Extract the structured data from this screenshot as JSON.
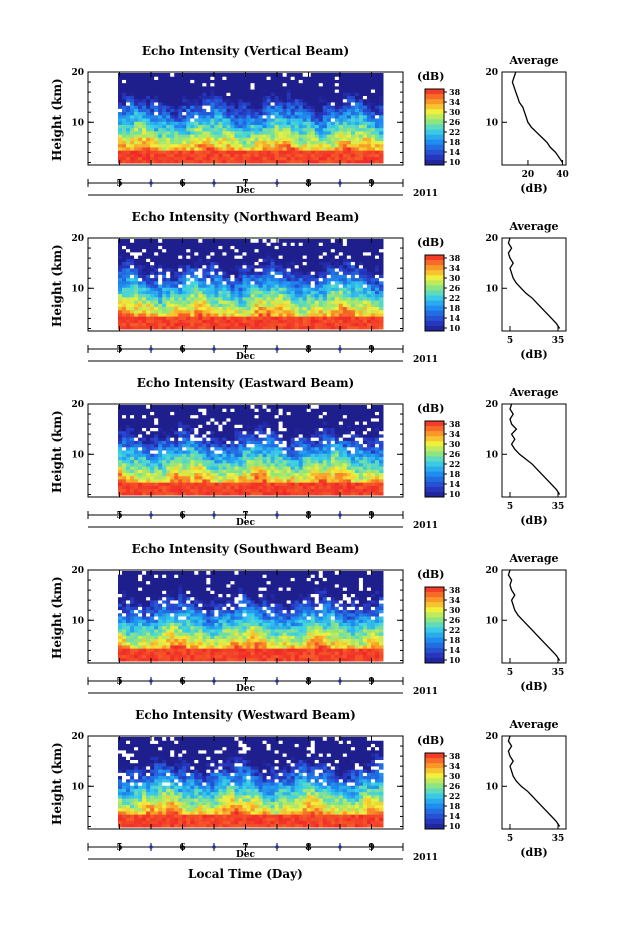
{
  "figure": {
    "xlabel": "Local Time (Day)",
    "month_label": "Dec",
    "year_label": "2011",
    "ylabel": "Height (km)",
    "avg_title": "Average",
    "avg_xlabel": "(dB)",
    "colorbar_unit": "(dB)"
  },
  "chart_data": [
    {
      "type": "heatmap",
      "title": "Echo Intensity (Vertical Beam)",
      "xlabel": "Local Time (Day)",
      "ylabel": "Height (km)",
      "x_ticks": [
        "5",
        "6",
        "7",
        "8",
        "9"
      ],
      "y_ticks": [
        "10",
        "20"
      ],
      "ylim": [
        2,
        20
      ],
      "x_range_days": [
        4.5,
        9.5
      ],
      "colorbar": {
        "label": "(dB)",
        "ticks": [
          "38",
          "34",
          "30",
          "26",
          "22",
          "18",
          "14",
          "10"
        ],
        "range": [
          10,
          38
        ]
      },
      "average_profile": {
        "title": "Average",
        "xlabel": "(dB)",
        "x_ticks": [
          "20",
          "40"
        ],
        "xlim": [
          5,
          42
        ],
        "height": [
          2,
          3,
          4,
          5,
          6,
          7,
          8,
          9,
          10,
          11,
          12,
          13,
          14,
          15,
          16,
          17,
          18,
          19,
          20
        ],
        "value": [
          40,
          38,
          36,
          33,
          31,
          28,
          25,
          22,
          20,
          19,
          18,
          17,
          15,
          14,
          13,
          12,
          11,
          12,
          13
        ]
      }
    },
    {
      "type": "heatmap",
      "title": "Echo Intensity (Northward Beam)",
      "xlabel": "Local Time (Day)",
      "ylabel": "Height (km)",
      "x_ticks": [
        "5",
        "6",
        "7",
        "8",
        "9"
      ],
      "y_ticks": [
        "10",
        "20"
      ],
      "ylim": [
        2,
        20
      ],
      "colorbar": {
        "label": "(dB)",
        "ticks": [
          "38",
          "34",
          "30",
          "26",
          "22",
          "18",
          "14",
          "10"
        ],
        "range": [
          10,
          38
        ]
      },
      "average_profile": {
        "title": "Average",
        "xlabel": "(dB)",
        "x_ticks": [
          "5",
          "35"
        ],
        "xlim": [
          0,
          40
        ],
        "height": [
          2,
          3,
          4,
          5,
          6,
          7,
          8,
          9,
          10,
          11,
          12,
          13,
          14,
          15,
          16,
          17,
          18,
          19,
          20
        ],
        "value": [
          36,
          34,
          31,
          28,
          25,
          22,
          19,
          15,
          12,
          9,
          7,
          6,
          5,
          7,
          5,
          4,
          6,
          4,
          5
        ]
      }
    },
    {
      "type": "heatmap",
      "title": "Echo Intensity (Eastward Beam)",
      "xlabel": "Local Time (Day)",
      "ylabel": "Height (km)",
      "x_ticks": [
        "5",
        "6",
        "7",
        "8",
        "9"
      ],
      "y_ticks": [
        "10",
        "20"
      ],
      "ylim": [
        2,
        20
      ],
      "colorbar": {
        "label": "(dB)",
        "ticks": [
          "38",
          "34",
          "30",
          "26",
          "22",
          "18",
          "14",
          "10"
        ],
        "range": [
          10,
          38
        ]
      },
      "average_profile": {
        "title": "Average",
        "xlabel": "(dB)",
        "x_ticks": [
          "5",
          "35"
        ],
        "xlim": [
          0,
          40
        ],
        "height": [
          2,
          3,
          4,
          5,
          6,
          7,
          8,
          9,
          10,
          11,
          12,
          13,
          14,
          15,
          16,
          17,
          18,
          19,
          20
        ],
        "value": [
          36,
          34,
          31,
          28,
          25,
          22,
          19,
          15,
          11,
          8,
          6,
          8,
          6,
          9,
          6,
          5,
          7,
          5,
          6
        ]
      }
    },
    {
      "type": "heatmap",
      "title": "Echo Intensity (Southward Beam)",
      "xlabel": "Local Time (Day)",
      "ylabel": "Height (km)",
      "x_ticks": [
        "5",
        "6",
        "7",
        "8",
        "9"
      ],
      "y_ticks": [
        "10",
        "20"
      ],
      "ylim": [
        2,
        20
      ],
      "colorbar": {
        "label": "(dB)",
        "ticks": [
          "38",
          "34",
          "30",
          "26",
          "22",
          "18",
          "14",
          "10"
        ],
        "range": [
          10,
          38
        ]
      },
      "average_profile": {
        "title": "Average",
        "xlabel": "(dB)",
        "x_ticks": [
          "5",
          "35"
        ],
        "xlim": [
          0,
          40
        ],
        "height": [
          2,
          3,
          4,
          5,
          6,
          7,
          8,
          9,
          10,
          11,
          12,
          13,
          14,
          15,
          16,
          17,
          18,
          19,
          20
        ],
        "value": [
          36,
          34,
          31,
          28,
          25,
          22,
          19,
          16,
          13,
          10,
          8,
          7,
          6,
          8,
          6,
          5,
          6,
          4,
          5
        ]
      }
    },
    {
      "type": "heatmap",
      "title": "Echo Intensity (Westward Beam)",
      "xlabel": "Local Time (Day)",
      "ylabel": "Height (km)",
      "x_ticks": [
        "5",
        "6",
        "7",
        "8",
        "9"
      ],
      "y_ticks": [
        "10",
        "20"
      ],
      "ylim": [
        2,
        20
      ],
      "colorbar": {
        "label": "(dB)",
        "ticks": [
          "38",
          "34",
          "30",
          "26",
          "22",
          "18",
          "14",
          "10"
        ],
        "range": [
          10,
          38
        ]
      },
      "average_profile": {
        "title": "Average",
        "xlabel": "(dB)",
        "x_ticks": [
          "5",
          "35"
        ],
        "xlim": [
          0,
          40
        ],
        "height": [
          2,
          3,
          4,
          5,
          6,
          7,
          8,
          9,
          10,
          11,
          12,
          13,
          14,
          15,
          16,
          17,
          18,
          19,
          20
        ],
        "value": [
          36,
          34,
          31,
          28,
          25,
          22,
          19,
          16,
          12,
          9,
          7,
          6,
          5,
          7,
          5,
          4,
          6,
          4,
          5
        ]
      }
    }
  ]
}
